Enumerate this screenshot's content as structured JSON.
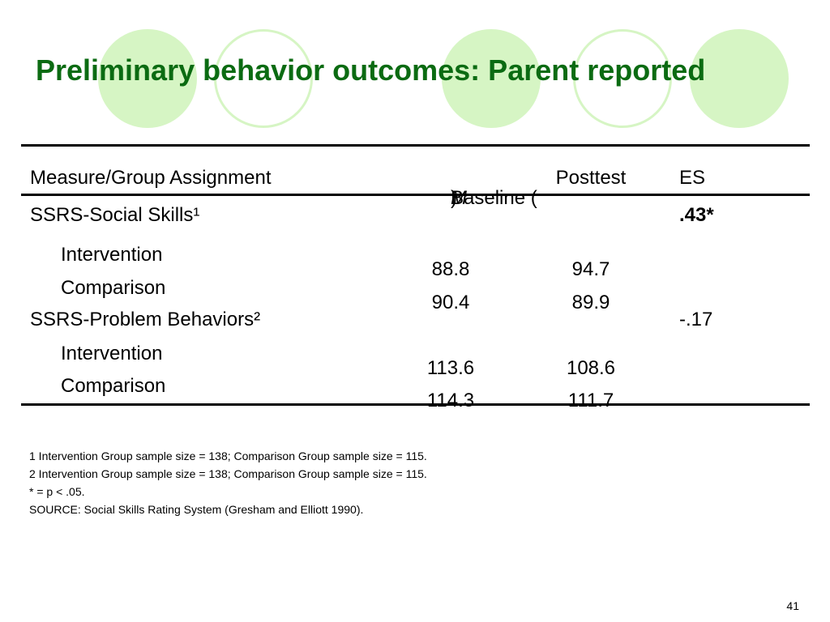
{
  "slide": {
    "title": "Preliminary behavior outcomes: Parent reported",
    "page_number": "41"
  },
  "table": {
    "headers": {
      "measure": "Measure/Group Assignment",
      "baseline_prefix": "Baseline (",
      "baseline_italic": "M",
      "baseline_suffix": ")",
      "posttest": "Posttest",
      "es": "ES"
    },
    "rows": [
      {
        "label": "SSRS-Social Skills¹",
        "baseline": "",
        "posttest": "",
        "es": ".43*",
        "es_bold": true
      },
      {
        "label": "Intervention",
        "baseline": "88.8",
        "posttest": "94.7",
        "es": ""
      },
      {
        "label": "Comparison",
        "baseline": "90.4",
        "posttest": "89.9",
        "es": ""
      },
      {
        "label": "SSRS-Problem Behaviors²",
        "baseline": "",
        "posttest": "",
        "es": "-.17"
      },
      {
        "label": "Intervention",
        "baseline": "113.6",
        "posttest": "108.6",
        "es": ""
      },
      {
        "label": "Comparison",
        "baseline": "114.3",
        "posttest": "111.7",
        "es": ""
      }
    ]
  },
  "footnotes": [
    "1 Intervention Group sample size = 138; Comparison Group sample size = 115.",
    "2 Intervention Group sample size = 138; Comparison Group sample size = 115.",
    "* = p < .05.",
    "SOURCE: Social Skills Rating System (Gresham and Elliott 1990)."
  ],
  "colors": {
    "title": "#0b6b12",
    "decoration": "#d6f5c4"
  }
}
